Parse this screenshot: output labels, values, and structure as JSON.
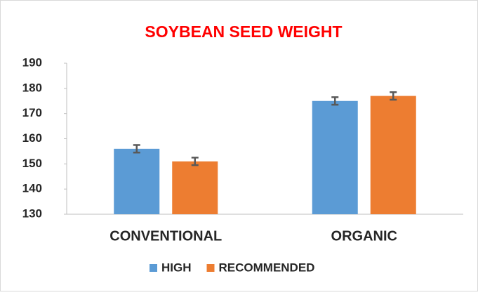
{
  "chart_data": {
    "type": "bar",
    "title": "SOYBEAN SEED WEIGHT",
    "categories": [
      "CONVENTIONAL",
      "ORGANIC"
    ],
    "series": [
      {
        "name": "HIGH",
        "color": "#5b9bd5",
        "values": [
          156,
          175
        ],
        "errors": [
          1.5,
          1.5
        ]
      },
      {
        "name": "RECOMMENDED",
        "color": "#ed7d31",
        "values": [
          151,
          177
        ],
        "errors": [
          1.5,
          1.5
        ]
      }
    ],
    "ylim": [
      130,
      190
    ],
    "yticks": [
      130,
      140,
      150,
      160,
      170,
      180,
      190
    ],
    "grid": false,
    "legend": "bottom"
  }
}
